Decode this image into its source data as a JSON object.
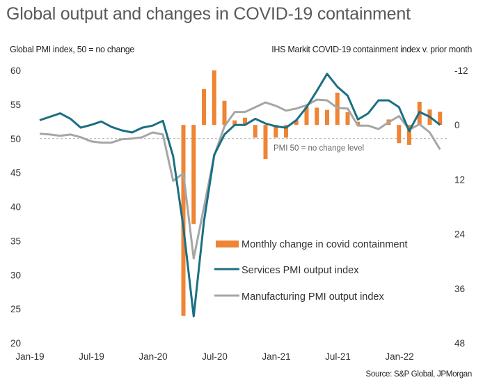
{
  "title": "Global output and changes in COVID-19 containment",
  "left_axis_title": "Global PMI index, 50 =  no change",
  "right_axis_title": "IHS Markit COVID-19 containment index v. prior month",
  "source": "Source: S&P Global, JPMorgan",
  "colors": {
    "covid": "#EE8434",
    "services": "#1B6F83",
    "manufacturing": "#A6A6A6",
    "reference": "#AAAAAA"
  },
  "chart_data": {
    "type": "line",
    "title": "Global output and changes in COVID-19 containment",
    "xlabel": "",
    "ylabel": "Global PMI index, 50 =  no change",
    "y2label": "IHS Markit COVID-19 containment index v. prior month",
    "ylim": [
      20,
      60
    ],
    "y2lim": [
      -12,
      48
    ],
    "y2_inverted": true,
    "y_ticks": [
      60,
      55,
      50,
      45,
      40,
      35,
      30,
      25,
      20
    ],
    "y2_ticks": [
      -12,
      0,
      12,
      24,
      36,
      48
    ],
    "x_tick_labels": [
      "Jan-19",
      "Jul-19",
      "Jan-20",
      "Jul-20",
      "Jan-21",
      "Jul-21",
      "Jan-22"
    ],
    "x_tick_months": [
      0,
      6,
      12,
      18,
      24,
      30,
      36
    ],
    "x": [
      "2019-01",
      "2019-02",
      "2019-03",
      "2019-04",
      "2019-05",
      "2019-06",
      "2019-07",
      "2019-08",
      "2019-09",
      "2019-10",
      "2019-11",
      "2019-12",
      "2020-01",
      "2020-02",
      "2020-03",
      "2020-04",
      "2020-05",
      "2020-06",
      "2020-07",
      "2020-08",
      "2020-09",
      "2020-10",
      "2020-11",
      "2020-12",
      "2021-01",
      "2021-02",
      "2021-03",
      "2021-04",
      "2021-05",
      "2021-06",
      "2021-07",
      "2021-08",
      "2021-09",
      "2021-10",
      "2021-11",
      "2021-12",
      "2022-01",
      "2022-02",
      "2022-03",
      "2022-04"
    ],
    "reference_line": {
      "value": 50,
      "label": "PMI 50 = no change level"
    },
    "legend_position": "bottom-right",
    "grid": false,
    "series": [
      {
        "name": "Monthly change in covid containment",
        "type": "bar",
        "axis": "right",
        "values": [
          0,
          0,
          0,
          0,
          0,
          0,
          0,
          0,
          0,
          0,
          0,
          0,
          0,
          0,
          42,
          21.8,
          -7.9,
          -12,
          -5.3,
          -1.0,
          -1.6,
          2.8,
          7.5,
          2.8,
          2.8,
          -1.0,
          -4.0,
          -3.8,
          -3.3,
          -7.1,
          -2.8,
          -0.7,
          0,
          0,
          -1.2,
          4.0,
          4.4,
          -5.1,
          -3.4,
          -2.9
        ]
      },
      {
        "name": "Services PMI output index",
        "type": "line",
        "axis": "left",
        "values": [
          52.7,
          53.2,
          53.7,
          52.9,
          51.6,
          52.0,
          52.5,
          51.7,
          51.2,
          50.9,
          51.6,
          51.9,
          52.6,
          47.4,
          37.0,
          23.9,
          37.8,
          47.6,
          50.6,
          52.0,
          52.0,
          52.9,
          52.2,
          51.8,
          51.6,
          52.7,
          54.6,
          57.0,
          59.5,
          57.6,
          56.3,
          52.8,
          53.7,
          55.6,
          55.6,
          54.6,
          51.1,
          53.9,
          53.2,
          52.0
        ]
      },
      {
        "name": "Manufacturing PMI output index",
        "type": "line",
        "axis": "left",
        "values": [
          50.7,
          50.6,
          50.4,
          50.6,
          50.2,
          49.6,
          49.4,
          49.4,
          49.9,
          50.0,
          50.2,
          50.9,
          50.6,
          43.8,
          44.9,
          32.4,
          39.9,
          47.5,
          51.8,
          53.9,
          53.9,
          54.6,
          55.3,
          54.8,
          54.1,
          54.4,
          54.9,
          55.7,
          55.6,
          54.5,
          54.4,
          51.9,
          51.9,
          51.4,
          52.4,
          53.3,
          51.3,
          52.1,
          50.9,
          48.4
        ]
      }
    ]
  }
}
